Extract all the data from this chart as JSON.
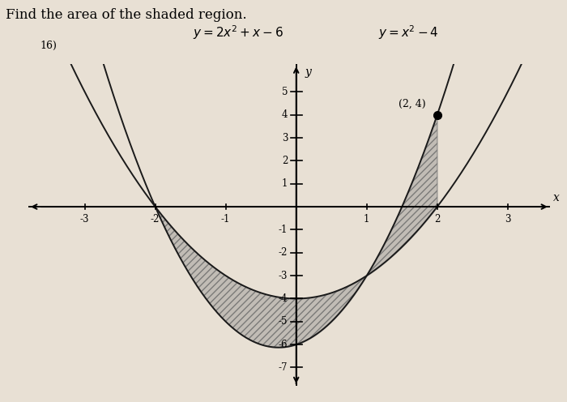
{
  "title_line1": "Find the area of the shaded region.",
  "title_line2": "y = 2x² + x - 6     y = x² - 4",
  "subtitle": "16)",
  "annotation_point": [
    2,
    4
  ],
  "annotation_text": "(2, 4)",
  "xlim": [
    -3.8,
    3.6
  ],
  "ylim": [
    -7.8,
    6.2
  ],
  "x_ticks": [
    -3,
    -2,
    -1,
    1,
    2,
    3
  ],
  "y_ticks": [
    -7,
    -6,
    -5,
    -4,
    -3,
    -2,
    -1,
    1,
    2,
    3,
    4,
    5
  ],
  "shade_x_start": -2,
  "shade_x_end": 2,
  "background_color": "#e8e0d4",
  "curve_color": "#1a1a1a",
  "shade_color": "#888888",
  "shade_alpha": 0.4,
  "axis_label_x": "x",
  "axis_label_y": "y",
  "figsize": [
    7.0,
    4.96
  ],
  "dpi": 100
}
